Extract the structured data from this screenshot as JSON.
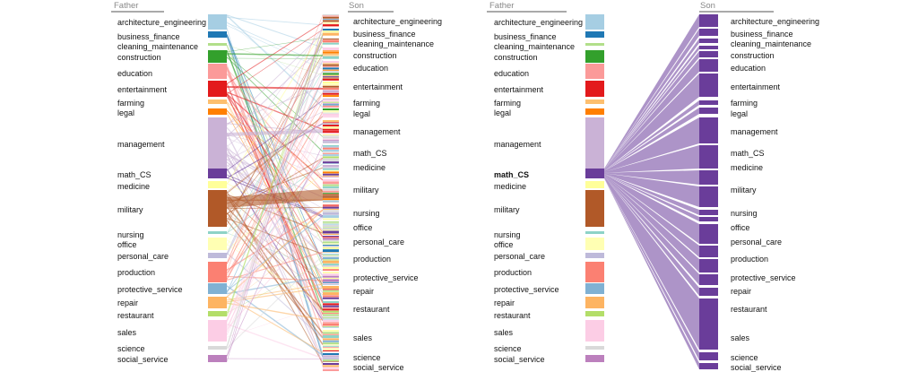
{
  "panels": [
    {
      "father_header": "Father",
      "son_header": "Son",
      "highlighted_father": null,
      "father_labels": [
        "architecture_engineering",
        "business_finance",
        "cleaning_maintenance",
        "construction",
        "education",
        "entertainment",
        "farming",
        "legal",
        "management",
        "math_CS",
        "medicine",
        "military",
        "nursing",
        "office",
        "personal_care",
        "production",
        "protective_service",
        "repair",
        "restaurant",
        "sales",
        "science",
        "social_service"
      ],
      "son_labels": [
        "architecture_engineering",
        "business_finance",
        "cleaning_maintenance",
        "construction",
        "education",
        "entertainment",
        "farming",
        "legal",
        "management",
        "math_CS",
        "medicine",
        "military",
        "nursing",
        "office",
        "personal_care",
        "production",
        "protective_service",
        "repair",
        "restaurant",
        "sales",
        "science",
        "social_service"
      ]
    },
    {
      "father_header": "Father",
      "son_header": "Son",
      "highlighted_father": "math_CS",
      "father_labels": [
        "architecture_engineering",
        "business_finance",
        "cleaning_maintenance",
        "construction",
        "education",
        "entertainment",
        "farming",
        "legal",
        "management",
        "math_CS",
        "medicine",
        "military",
        "nursing",
        "office",
        "personal_care",
        "production",
        "protective_service",
        "repair",
        "restaurant",
        "sales",
        "science",
        "social_service"
      ],
      "son_labels": [
        "architecture_engineering",
        "business_finance",
        "cleaning_maintenance",
        "construction",
        "education",
        "entertainment",
        "farming",
        "legal",
        "management",
        "math_CS",
        "medicine",
        "military",
        "nursing",
        "office",
        "personal_care",
        "production",
        "protective_service",
        "repair",
        "restaurant",
        "sales",
        "science",
        "social_service"
      ]
    }
  ],
  "category_colors": {
    "architecture_engineering": "#a6cee3",
    "business_finance": "#1f78b4",
    "cleaning_maintenance": "#b2df8a",
    "construction": "#33a02c",
    "education": "#fb9a99",
    "entertainment": "#e31a1c",
    "farming": "#fdbf6f",
    "legal": "#ff7f00",
    "management": "#cab2d6",
    "math_CS": "#6a3d9a",
    "medicine": "#ffff99",
    "military": "#b15928",
    "nursing": "#8dd3c7",
    "office": "#ffffb3",
    "personal_care": "#bebada",
    "production": "#fb8072",
    "protective_service": "#80b1d3",
    "repair": "#fdb462",
    "restaurant": "#b3de69",
    "sales": "#fccde5",
    "science": "#d9d9d9",
    "social_service": "#bc80bd"
  },
  "highlight_color": "#6a3d9a"
}
